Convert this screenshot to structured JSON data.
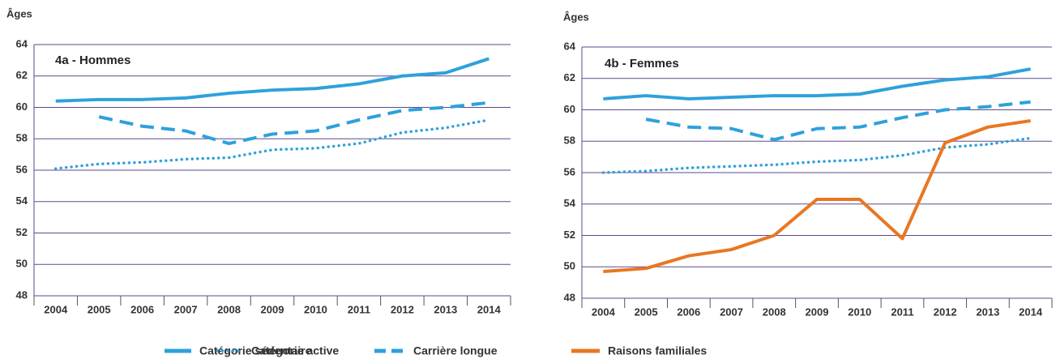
{
  "chart_data": [
    {
      "type": "line",
      "title": "4a - Hommes",
      "y_label": "Âges",
      "categories": [
        "2004",
        "2005",
        "2006",
        "2007",
        "2008",
        "2009",
        "2010",
        "2011",
        "2012",
        "2013",
        "2014"
      ],
      "ylim": [
        48,
        64
      ],
      "yticks": [
        48,
        50,
        52,
        54,
        56,
        58,
        60,
        62,
        64
      ],
      "grid": true,
      "series": [
        {
          "name": "Catégorie sédentaire",
          "color": "#2ea1dc",
          "style": "solid",
          "values": [
            60.4,
            60.5,
            60.5,
            60.6,
            60.9,
            61.1,
            61.2,
            61.5,
            62.0,
            62.2,
            63.1
          ]
        },
        {
          "name": "Catégorie active",
          "color": "#2ea1dc",
          "style": "dotted",
          "values": [
            56.1,
            56.4,
            56.5,
            56.7,
            56.8,
            57.3,
            57.4,
            57.7,
            58.4,
            58.7,
            59.2
          ]
        },
        {
          "name": "Carrière longue",
          "color": "#2ea1dc",
          "style": "dashed",
          "values": [
            null,
            59.4,
            58.8,
            58.5,
            57.7,
            58.3,
            58.5,
            59.2,
            59.8,
            60.0,
            60.3
          ]
        }
      ]
    },
    {
      "type": "line",
      "title": "4b - Femmes",
      "y_label": "Âges",
      "categories": [
        "2004",
        "2005",
        "2006",
        "2007",
        "2008",
        "2009",
        "2010",
        "2011",
        "2012",
        "2013",
        "2014"
      ],
      "ylim": [
        48,
        64
      ],
      "yticks": [
        48,
        50,
        52,
        54,
        56,
        58,
        60,
        62,
        64
      ],
      "grid": true,
      "series": [
        {
          "name": "Catégorie sédentaire",
          "color": "#2ea1dc",
          "style": "solid",
          "values": [
            60.7,
            60.9,
            60.7,
            60.8,
            60.9,
            60.9,
            61.0,
            61.5,
            61.9,
            62.1,
            62.6
          ]
        },
        {
          "name": "Catégorie active",
          "color": "#2ea1dc",
          "style": "dotted",
          "values": [
            56.0,
            56.1,
            56.3,
            56.4,
            56.5,
            56.7,
            56.8,
            57.1,
            57.6,
            57.8,
            58.2
          ]
        },
        {
          "name": "Carrière longue",
          "color": "#2ea1dc",
          "style": "dashed",
          "values": [
            null,
            59.4,
            58.9,
            58.8,
            58.1,
            58.8,
            58.9,
            59.5,
            60.0,
            60.2,
            60.5
          ]
        },
        {
          "name": "Raisons familiales",
          "color": "#e87722",
          "style": "solid",
          "values": [
            49.7,
            49.9,
            50.7,
            51.1,
            52.0,
            54.3,
            54.3,
            51.8,
            57.9,
            58.9,
            59.3
          ]
        }
      ]
    }
  ]
}
